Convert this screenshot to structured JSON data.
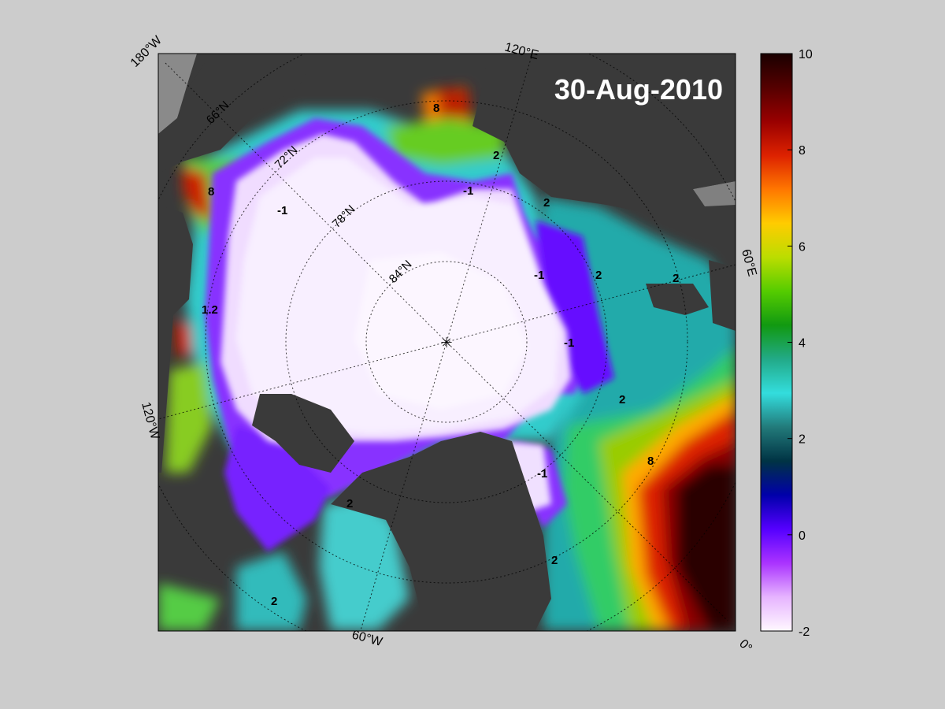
{
  "map": {
    "date": "30-Aug-2010",
    "edge_labels": {
      "top_left": "180°W",
      "top": "120°E",
      "right": "60°E",
      "bottom_right": "0°",
      "left": "120°W",
      "bottom": "60°W"
    },
    "latitude_labels": [
      "66°N",
      "72°N",
      "78°N",
      "84°N"
    ],
    "contour_labels": [
      "-1",
      "-1",
      "-1",
      "-1",
      "2",
      "2",
      "2",
      "2",
      "2",
      "2",
      "2",
      "2",
      "8",
      "8",
      "8",
      "-1",
      "1.2"
    ],
    "colors": {
      "background": "#cccccc",
      "land": "#3a3a3a",
      "ice_cold": "#f7efff",
      "warm": "#cc1100",
      "hot": "#2a0000"
    }
  },
  "colorbar": {
    "min": -2,
    "max": 10,
    "tick_labels": [
      "10",
      "8",
      "6",
      "4",
      "2",
      "0",
      "-2"
    ],
    "tick_values": [
      10,
      8,
      6,
      4,
      2,
      0,
      -2
    ],
    "stops": [
      "#fff8ff",
      "#e6b4ff",
      "#aa33ff",
      "#5500ff",
      "#0000aa",
      "#003344",
      "#227a7a",
      "#33dddd",
      "#22aa88",
      "#119911",
      "#55cc00",
      "#bbdd00",
      "#ffcc00",
      "#ff7700",
      "#dd2200",
      "#990000",
      "#550000",
      "#1a0000"
    ]
  }
}
